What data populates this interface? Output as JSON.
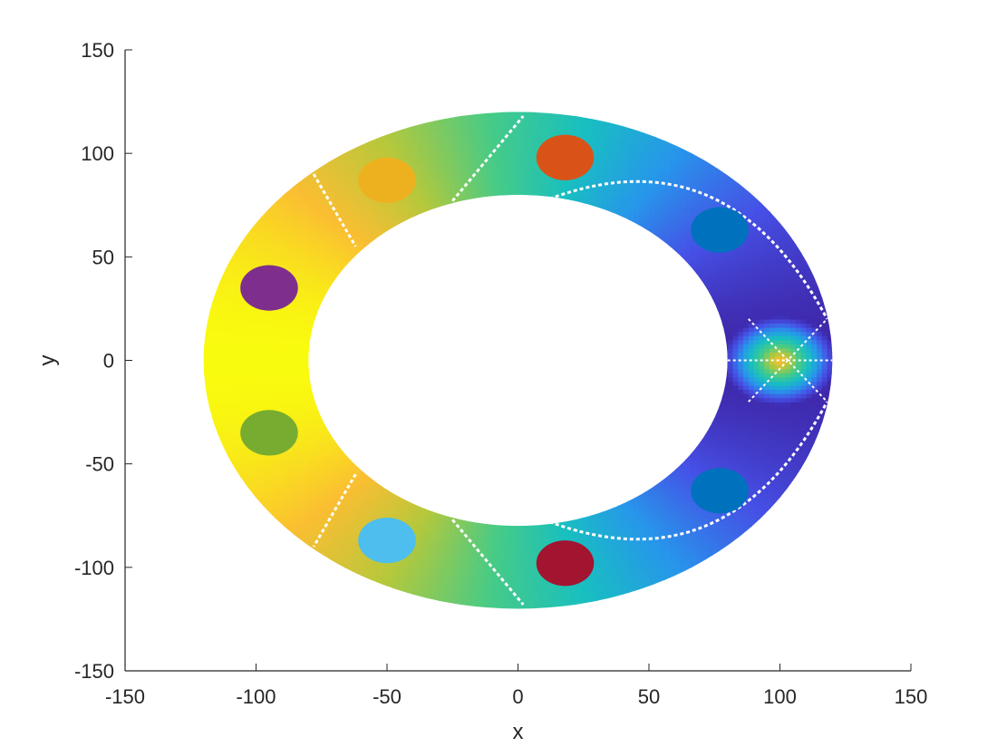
{
  "chart_data": {
    "type": "scatter",
    "title": "",
    "xlabel": "x",
    "ylabel": "y",
    "xlim": [
      -150,
      150
    ],
    "ylim": [
      -150,
      150
    ],
    "xticks": [
      -150,
      -100,
      -50,
      0,
      50,
      100,
      150
    ],
    "yticks": [
      -150,
      -100,
      -50,
      0,
      50,
      100,
      150
    ],
    "xtick_labels": [
      "-150",
      "-100",
      "-50",
      "0",
      "50",
      "100",
      "150"
    ],
    "ytick_labels": [
      "-150",
      "-100",
      "-50",
      "0",
      "50",
      "100",
      "150"
    ],
    "grid": false,
    "box": false,
    "ring": {
      "center": [
        0,
        0
      ],
      "outer_semi_axes": [
        120,
        120
      ],
      "inner_semi_axes": [
        80,
        80
      ],
      "colormap": "parula",
      "low_color": "#3e26a8",
      "high_color": "#f9fb0e",
      "high_region": "left (x < 0)",
      "low_region": "right (near x = 100)"
    },
    "contour_lines": [
      {
        "label": "left-upper",
        "points": [
          [
            -78,
            90
          ],
          [
            -62,
            55
          ]
        ]
      },
      {
        "label": "left-lower",
        "points": [
          [
            -62,
            -55
          ],
          [
            -78,
            -90
          ]
        ]
      },
      {
        "label": "top",
        "points": [
          [
            -25,
            77
          ],
          [
            2,
            118
          ]
        ]
      },
      {
        "label": "bottom",
        "points": [
          [
            -25,
            -77
          ],
          [
            2,
            -118
          ]
        ]
      },
      {
        "label": "right-upper-arc",
        "center": [
          100,
          0
        ],
        "radius": 88,
        "quadrant": "upper"
      },
      {
        "label": "right-lower-arc",
        "center": [
          100,
          0
        ],
        "radius": 88,
        "quadrant": "lower"
      }
    ],
    "sources": [
      {
        "x": -95,
        "y": 35,
        "color": "#7e2f8e"
      },
      {
        "x": -95,
        "y": -35,
        "color": "#77ac30"
      },
      {
        "x": -50,
        "y": 87,
        "color": "#edb120"
      },
      {
        "x": -50,
        "y": -87,
        "color": "#4dbeee"
      },
      {
        "x": 18,
        "y": 98,
        "color": "#d95319"
      },
      {
        "x": 18,
        "y": -98,
        "color": "#a2142f"
      },
      {
        "x": 77,
        "y": 63,
        "color": "#0072bd"
      },
      {
        "x": 77,
        "y": -63,
        "color": "#0072bd"
      }
    ]
  }
}
